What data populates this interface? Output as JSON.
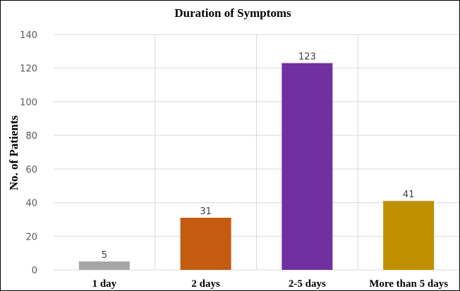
{
  "chart_data": {
    "type": "bar",
    "title": "Duration of Symptoms",
    "xlabel": "",
    "ylabel": "No. of Patients",
    "categories": [
      "1 day",
      "2 days",
      "2-5 days",
      "More than 5 days"
    ],
    "values": [
      5,
      31,
      123,
      41
    ],
    "data_labels": [
      "5",
      "31",
      "123",
      "41"
    ],
    "colors": [
      "#a5a5a5",
      "#c55a11",
      "#7030a0",
      "#bf9000"
    ],
    "ylim": [
      0,
      140
    ],
    "yticks": [
      0,
      20,
      40,
      60,
      80,
      100,
      120,
      140
    ],
    "grid": true,
    "legend": "none"
  }
}
